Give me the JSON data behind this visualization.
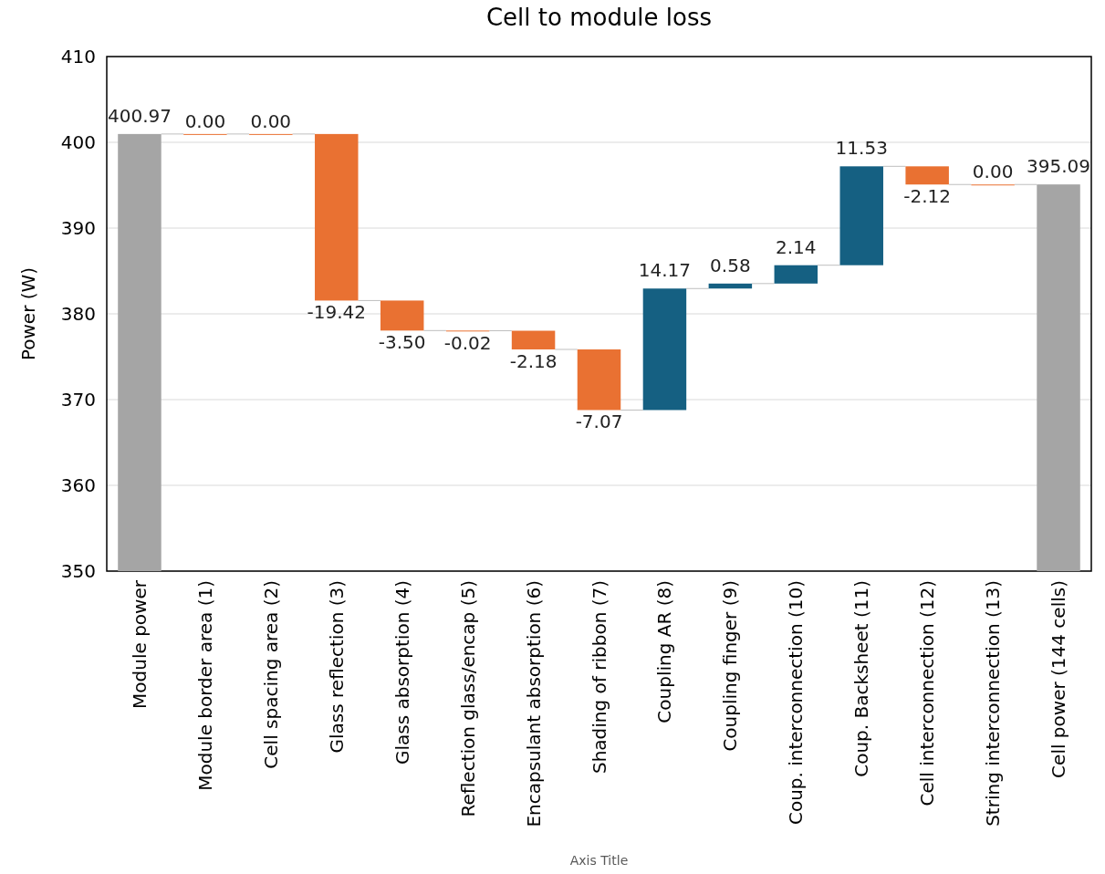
{
  "chart_data": {
    "type": "bar",
    "title": "Cell to module loss",
    "xlabel": "Axis Title",
    "ylabel": "Power (W)",
    "categories": [
      "Module power",
      "Module border area (1)",
      "Cell spacing area (2)",
      "Glass reflection (3)",
      "Glass absorption (4)",
      "Reflection glass/encap (5)",
      "Encapsulant absorption (6)",
      "Shading of ribbon (7)",
      "Coupling AR (8)",
      "Coupling finger (9)",
      "Coup. interconnection (10)",
      "Coup. Backsheet (11)",
      "Cell interconnection (12)",
      "String interconnection (13)",
      "Cell power (144 cells)"
    ],
    "base": [
      null,
      400.97,
      400.97,
      400.97,
      381.55,
      378.05,
      378.03,
      375.85,
      368.78,
      382.95,
      383.53,
      385.67,
      397.2,
      395.08,
      null
    ],
    "values": [
      400.97,
      0,
      0,
      -19.42,
      -3.5,
      -0.02,
      -2.18,
      -7.07,
      14.17,
      0.58,
      2.14,
      11.53,
      -2.12,
      0,
      395.09
    ],
    "value_labels": [
      "400.97",
      "0.00",
      "0.00",
      "-19.42",
      "-3.50",
      "-0.02",
      "-2.18",
      "-7.07",
      "14.17",
      "0.58",
      "2.14",
      "11.53",
      "-2.12",
      "0.00",
      "395.09"
    ],
    "colors": [
      "#a5a5a5",
      "#e97132",
      "#e97132",
      "#e97132",
      "#e97132",
      "#e97132",
      "#e97132",
      "#e97132",
      "#156082",
      "#156082",
      "#156082",
      "#156082",
      "#e97132",
      "#e97132",
      "#a5a5a5"
    ],
    "ylim": [
      350,
      410
    ],
    "yticks": [
      350,
      360,
      370,
      380,
      390,
      400,
      410
    ],
    "grid": "y"
  }
}
